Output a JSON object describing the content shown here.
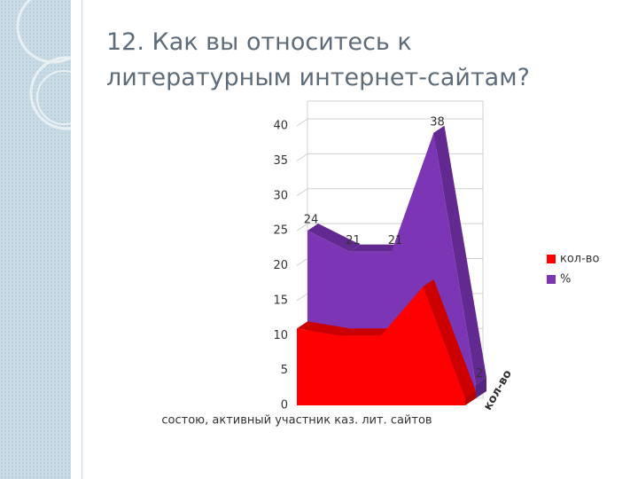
{
  "chart_data": {
    "type": "area3d",
    "title": [
      "12. Как вы относитесь к",
      "литературным интернет-сайтам?"
    ],
    "categories": [
      "состою, активный участник каз. лит. сайтов",
      null,
      null,
      null,
      null
    ],
    "series": [
      {
        "name": "кол-во",
        "color": "#ff0000",
        "values": [
          11,
          10,
          10,
          17,
          1
        ]
      },
      {
        "name": "%",
        "color": "#7b35b5",
        "values": [
          24,
          21,
          21,
          38,
          2
        ]
      }
    ],
    "ylim": [
      0,
      40
    ],
    "yticks": [
      0,
      5,
      10,
      15,
      20,
      25,
      30,
      35,
      40
    ],
    "grid": true,
    "legend": "right"
  }
}
